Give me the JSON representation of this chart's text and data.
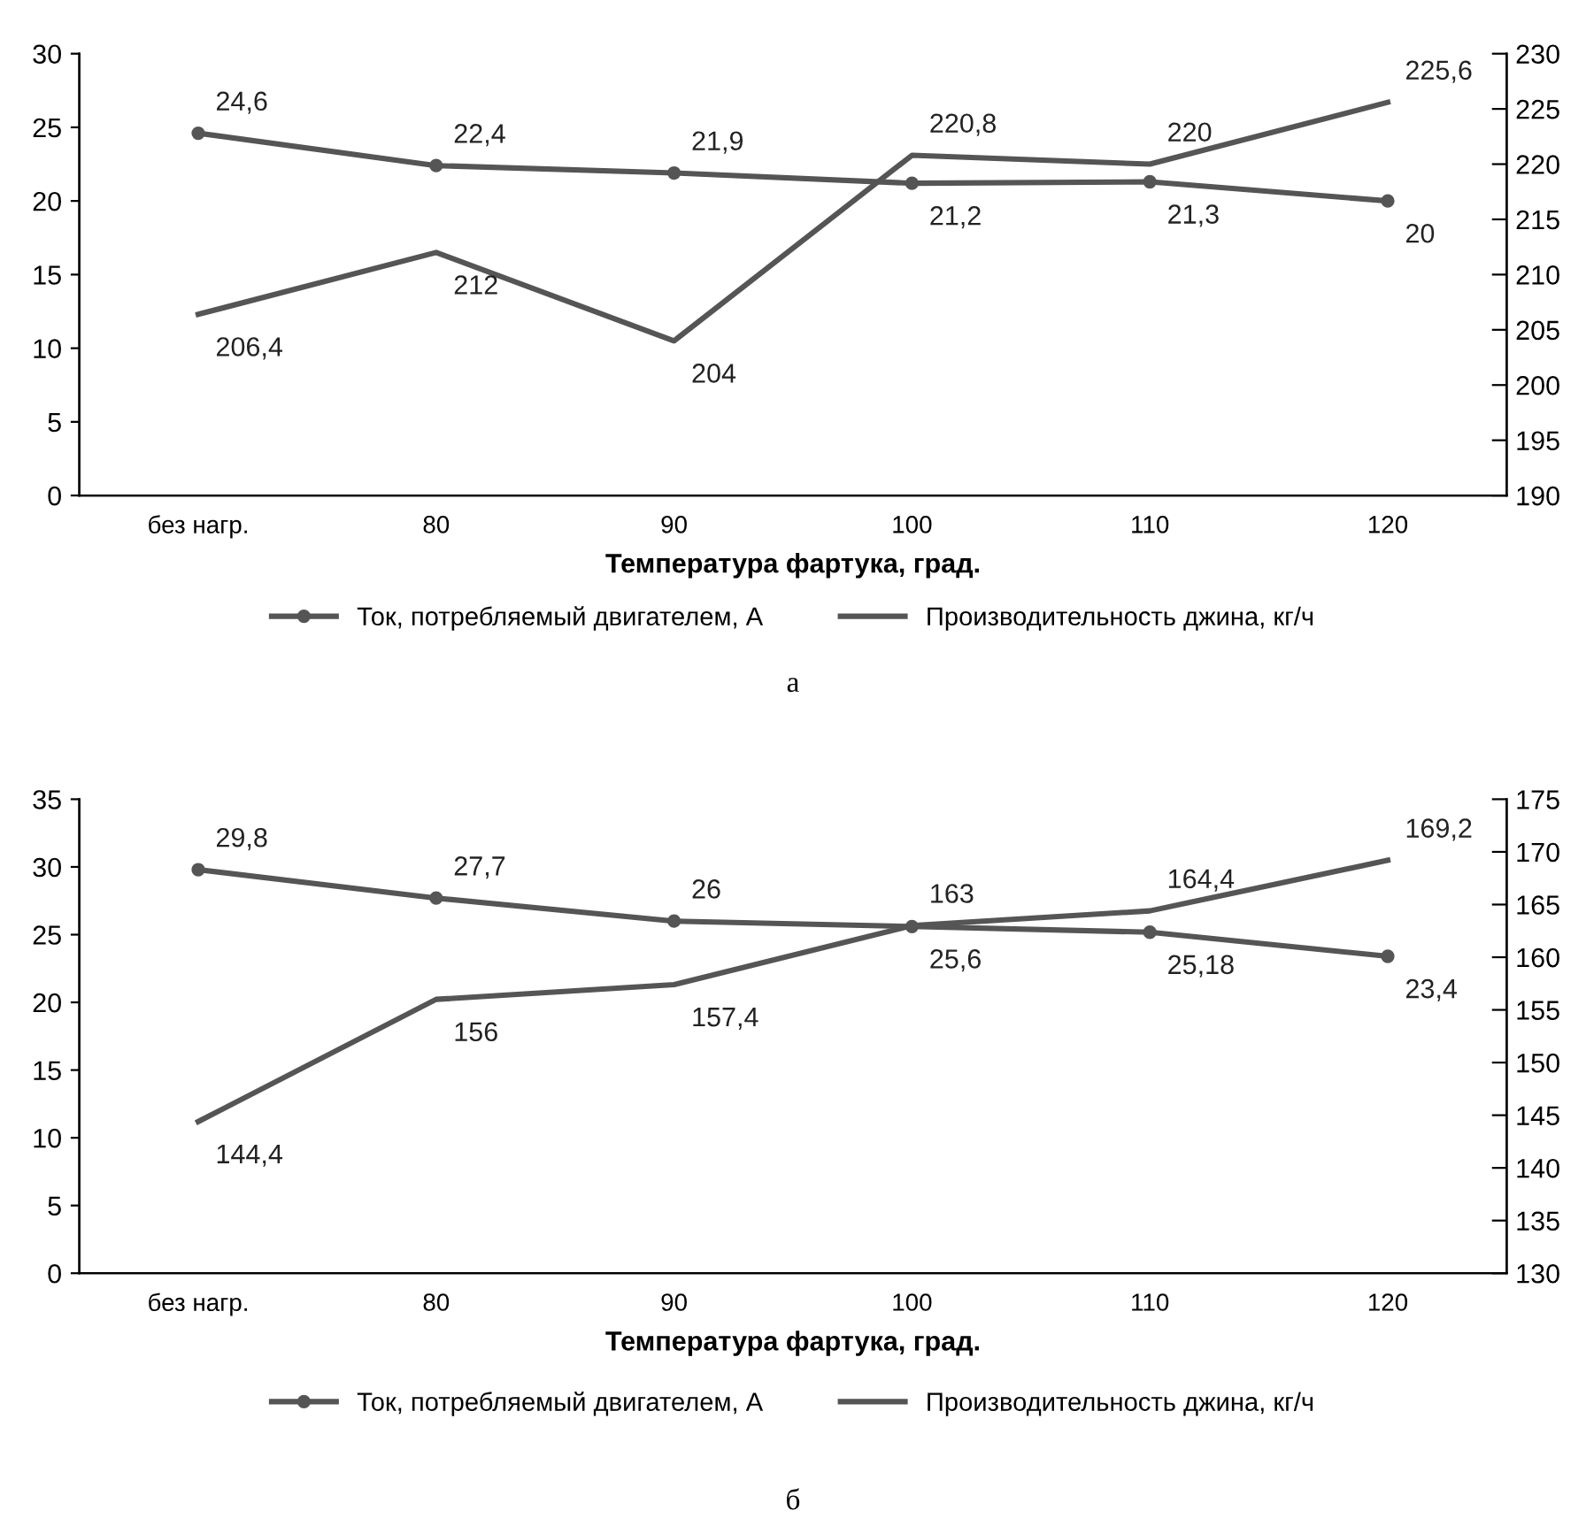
{
  "chart_data": [
    {
      "type": "line",
      "categories": [
        "без нагр.",
        "80",
        "90",
        "100",
        "110",
        "120"
      ],
      "xlabel": "Температура фартука, град.",
      "ylim": [
        0,
        30
      ],
      "yticks": [
        0,
        5,
        10,
        15,
        20,
        25,
        30
      ],
      "y2lim": [
        190,
        230
      ],
      "y2ticks": [
        190,
        195,
        200,
        205,
        210,
        215,
        220,
        225,
        230
      ],
      "grid": false,
      "legend": "bottom",
      "annotations": [
        "а"
      ],
      "series": [
        {
          "name": "Ток, потребляемый двигателем, А",
          "color": "#555555",
          "marker": "circle",
          "values": [
            24.6,
            22.4,
            21.9,
            21.2,
            21.3,
            20
          ],
          "value_labels": [
            "24,6",
            "22,4",
            "21,9",
            "21,2",
            "21,3",
            "20"
          ]
        },
        {
          "name": "Производительность джина, кг/ч",
          "color": "#555555",
          "axis": "y2",
          "marker": "none",
          "values": [
            206.4,
            212,
            204,
            220.8,
            220,
            225.6
          ],
          "value_labels": [
            "206,4",
            "212",
            "204",
            "220,8",
            "220",
            "225,6"
          ]
        }
      ]
    },
    {
      "type": "line",
      "categories": [
        "без нагр.",
        "80",
        "90",
        "100",
        "110",
        "120"
      ],
      "xlabel": "Температура фартука, град.",
      "ylim": [
        0,
        35
      ],
      "yticks": [
        0,
        5,
        10,
        15,
        20,
        25,
        30,
        35
      ],
      "y2lim": [
        130,
        175
      ],
      "y2ticks": [
        130,
        135,
        140,
        145,
        150,
        155,
        160,
        165,
        170,
        175
      ],
      "grid": false,
      "legend": "bottom",
      "annotations": [
        "б"
      ],
      "series": [
        {
          "name": "Ток, потребляемый двигателем, А",
          "color": "#555555",
          "marker": "circle",
          "values": [
            29.8,
            27.7,
            26,
            25.6,
            25.18,
            23.4
          ],
          "value_labels": [
            "29,8",
            "27,7",
            "26",
            "25,6",
            "25,18",
            "23,4"
          ]
        },
        {
          "name": "Производительность джина, кг/ч",
          "color": "#555555",
          "axis": "y2",
          "marker": "none",
          "values": [
            144.4,
            156,
            157.4,
            163,
            164.4,
            169.2
          ],
          "value_labels": [
            "144,4",
            "156",
            "157,4",
            "163",
            "164,4",
            "169,2"
          ]
        }
      ]
    }
  ]
}
